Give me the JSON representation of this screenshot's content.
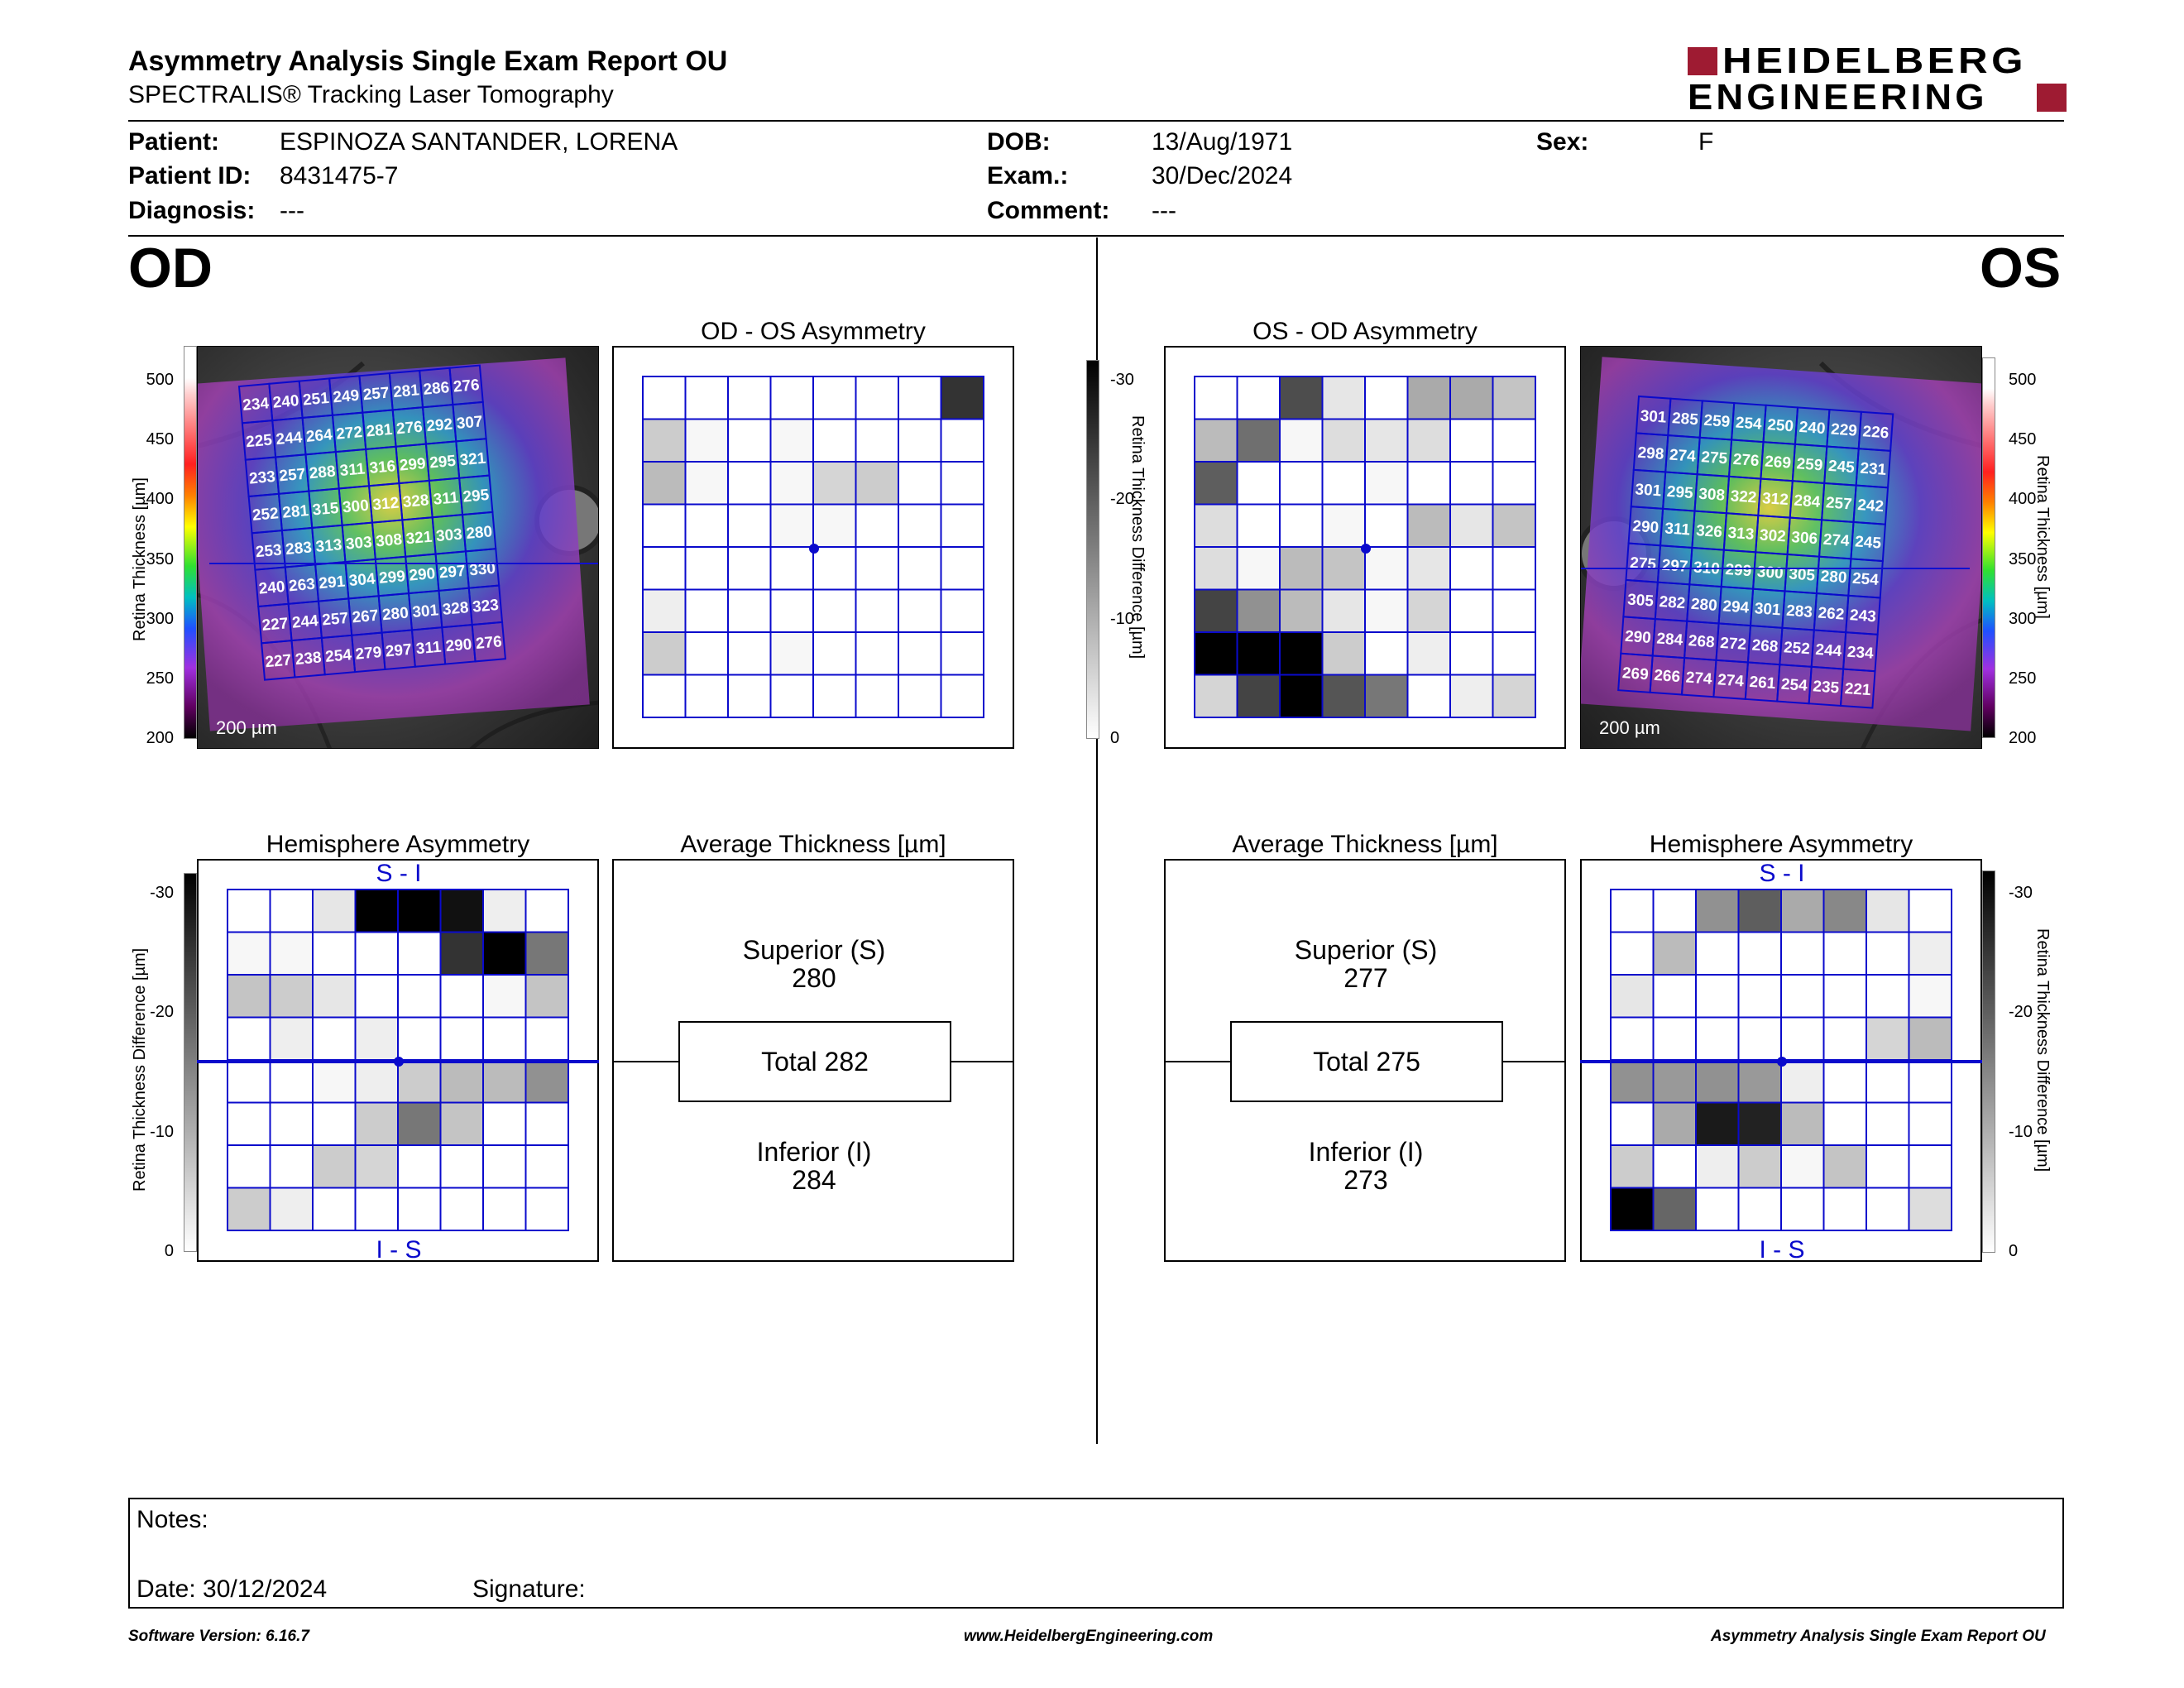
{
  "header": {
    "title": "Asymmetry Analysis Single Exam Report OU",
    "subtitle": "SPECTRALIS® Tracking Laser Tomography",
    "logo_line1": "HEIDELBERG",
    "logo_line2": "ENGINEERING"
  },
  "patient": {
    "patient_label": "Patient:",
    "patient_value": "ESPINOZA SANTANDER, LORENA",
    "id_label": "Patient ID:",
    "id_value": "8431475-7",
    "diagnosis_label": "Diagnosis:",
    "diagnosis_value": "---",
    "dob_label": "DOB:",
    "dob_value": "13/Aug/1971",
    "exam_label": "Exam.:",
    "exam_value": "30/Dec/2024",
    "comment_label": "Comment:",
    "comment_value": "---",
    "sex_label": "Sex:",
    "sex_value": "F"
  },
  "od": {
    "eye_label": "OD",
    "fundus_scale": "200 µm",
    "asym_title": "OD - OS Asymmetry",
    "hemi_title": "Hemisphere Asymmetry",
    "hemi_top": "S - I",
    "hemi_bottom": "I - S",
    "avg_title": "Average Thickness [µm]",
    "superior_label": "Superior (S)",
    "superior_value": "280",
    "total_label": "Total 282",
    "inferior_label": "Inferior (I)",
    "inferior_value": "284",
    "thickness_grid": [
      [
        234,
        240,
        251,
        249,
        257,
        281,
        286,
        276
      ],
      [
        225,
        244,
        264,
        272,
        281,
        276,
        292,
        307
      ],
      [
        233,
        257,
        288,
        311,
        316,
        299,
        295,
        321
      ],
      [
        252,
        281,
        315,
        300,
        312,
        328,
        311,
        295
      ],
      [
        253,
        283,
        313,
        303,
        308,
        321,
        303,
        280
      ],
      [
        240,
        263,
        291,
        304,
        299,
        290,
        297,
        330
      ],
      [
        227,
        244,
        257,
        267,
        280,
        301,
        328,
        323
      ],
      [
        227,
        238,
        254,
        279,
        297,
        311,
        290,
        276
      ]
    ],
    "asym_grid": [
      [
        0,
        0,
        0,
        0,
        0,
        0,
        0,
        24
      ],
      [
        6,
        1,
        0,
        1,
        0,
        0,
        0,
        0
      ],
      [
        8,
        1,
        0,
        1,
        5,
        6,
        0,
        0
      ],
      [
        0,
        0,
        0,
        1,
        1,
        0,
        0,
        0
      ],
      [
        0,
        0,
        0,
        0,
        0,
        0,
        0,
        0
      ],
      [
        2,
        0,
        0,
        0,
        0,
        0,
        0,
        0
      ],
      [
        6,
        0,
        0,
        1,
        0,
        0,
        0,
        0
      ],
      [
        0,
        0,
        0,
        0,
        0,
        0,
        0,
        0
      ]
    ],
    "hemi_grid": [
      [
        0,
        0,
        3,
        30,
        30,
        28,
        2,
        0
      ],
      [
        1,
        1,
        0,
        0,
        0,
        24,
        30,
        16
      ],
      [
        7,
        6,
        3,
        0,
        0,
        0,
        1,
        7
      ],
      [
        0,
        2,
        0,
        2,
        0,
        0,
        0,
        0
      ],
      [
        0,
        0,
        1,
        2,
        6,
        8,
        8,
        13
      ],
      [
        0,
        0,
        0,
        6,
        16,
        7,
        0,
        0
      ],
      [
        0,
        0,
        6,
        5,
        0,
        0,
        0,
        0
      ],
      [
        6,
        2,
        0,
        0,
        0,
        0,
        0,
        0
      ]
    ]
  },
  "os": {
    "eye_label": "OS",
    "fundus_scale": "200 µm",
    "asym_title": "OS - OD Asymmetry",
    "hemi_title": "Hemisphere Asymmetry",
    "hemi_top": "S - I",
    "hemi_bottom": "I - S",
    "avg_title": "Average Thickness [µm]",
    "superior_label": "Superior (S)",
    "superior_value": "277",
    "total_label": "Total 275",
    "inferior_label": "Inferior (I)",
    "inferior_value": "273",
    "thickness_grid": [
      [
        301,
        285,
        259,
        254,
        250,
        240,
        229,
        226
      ],
      [
        298,
        274,
        275,
        276,
        269,
        259,
        245,
        231
      ],
      [
        301,
        295,
        308,
        322,
        312,
        284,
        257,
        242
      ],
      [
        290,
        311,
        326,
        313,
        302,
        306,
        274,
        245
      ],
      [
        275,
        297,
        310,
        299,
        300,
        305,
        280,
        254
      ],
      [
        305,
        282,
        280,
        294,
        301,
        283,
        262,
        243
      ],
      [
        290,
        284,
        268,
        272,
        268,
        252,
        244,
        234
      ],
      [
        269,
        266,
        274,
        274,
        261,
        254,
        235,
        221
      ]
    ],
    "asym_grid": [
      [
        0,
        0,
        21,
        3,
        0,
        10,
        10,
        7
      ],
      [
        8,
        17,
        1,
        4,
        3,
        4,
        0,
        0
      ],
      [
        19,
        0,
        0,
        0,
        1,
        0,
        0,
        0
      ],
      [
        4,
        0,
        0,
        1,
        0,
        8,
        3,
        7
      ],
      [
        4,
        1,
        8,
        7,
        1,
        3,
        0,
        0
      ],
      [
        22,
        13,
        8,
        3,
        1,
        5,
        0,
        0
      ],
      [
        30,
        30,
        30,
        6,
        0,
        2,
        0,
        0
      ],
      [
        5,
        22,
        30,
        20,
        16,
        0,
        2,
        5
      ]
    ],
    "hemi_grid": [
      [
        0,
        0,
        13,
        19,
        10,
        14,
        3,
        0
      ],
      [
        0,
        8,
        0,
        0,
        0,
        0,
        0,
        2
      ],
      [
        3,
        0,
        0,
        0,
        0,
        0,
        0,
        1
      ],
      [
        0,
        0,
        0,
        0,
        0,
        0,
        5,
        8
      ],
      [
        13,
        12,
        13,
        12,
        2,
        0,
        0,
        0
      ],
      [
        0,
        10,
        27,
        26,
        8,
        0,
        0,
        0
      ],
      [
        6,
        0,
        2,
        6,
        1,
        7,
        0,
        0
      ],
      [
        30,
        18,
        0,
        0,
        0,
        0,
        0,
        4
      ]
    ]
  },
  "scales": {
    "thickness_ticks": [
      "500",
      "450",
      "400",
      "350",
      "300",
      "250",
      "200"
    ],
    "thickness_label": "Retina Thickness [µm]",
    "diff_ticks": [
      "-30",
      "-20",
      "-10",
      "0"
    ],
    "diff_label": "Retina Thickness Difference [µm]"
  },
  "notes": {
    "notes_label": "Notes:",
    "date_label": "Date: 30/12/2024",
    "signature_label": "Signature:"
  },
  "footer": {
    "software": "Software Version: 6.16.7",
    "website": "www.HeidelbergEngineering.com",
    "report_name": "Asymmetry Analysis Single Exam Report OU"
  },
  "colors": {
    "grid_blue": "#0a0acc",
    "brand_red": "#9e1b32"
  }
}
